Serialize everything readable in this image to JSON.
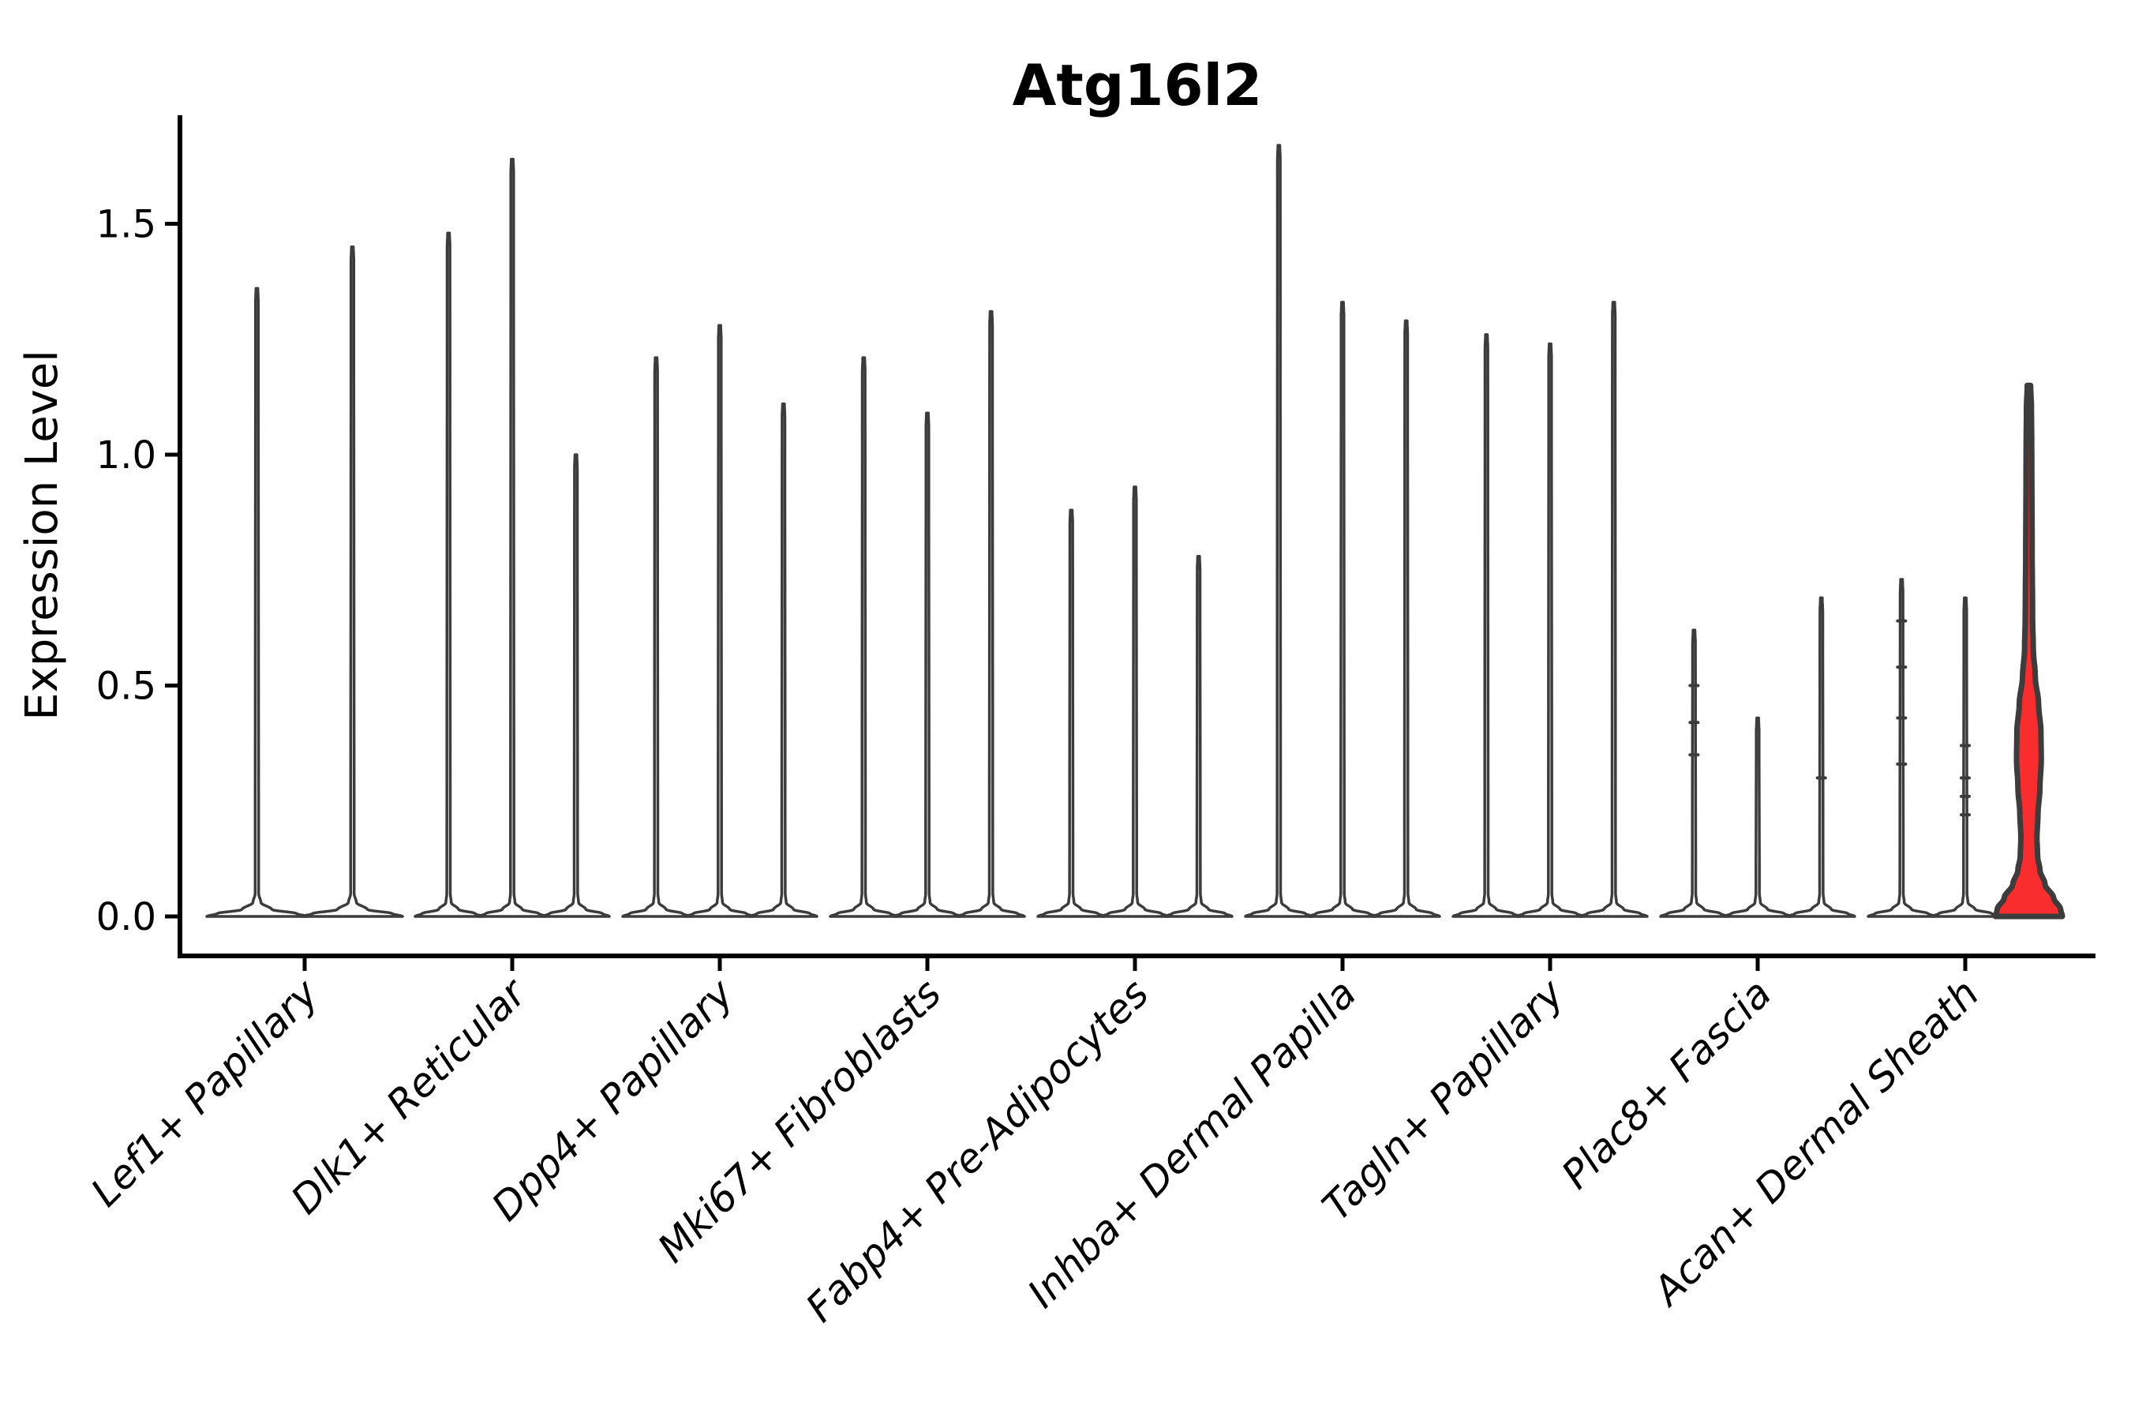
{
  "page": {
    "background": "#ffffff"
  },
  "chart_data": {
    "type": "violin",
    "title": "Atg16l2",
    "ylabel": "Expression Level",
    "xlabel": "",
    "grid": false,
    "legend": null,
    "ylim": [
      -0.09,
      1.74
    ],
    "yticks": {
      "labels": [
        "0.0",
        "0.5",
        "1.0",
        "1.5"
      ],
      "values": [
        0,
        0.5,
        1.0,
        1.5
      ]
    },
    "colors": {
      "violin_stroke": "#3c3c3c",
      "axis": "#000000",
      "text": "#000000",
      "highlight_fill": "#F92D2D"
    },
    "categories": [
      "Lef1+ Papillary",
      "Dlk1+ Reticular",
      "Dpp4+ Papillary",
      "Mki67+ Fibroblasts",
      "Fabp4+ Pre-Adipocytes",
      "Inhba+ Dermal Papilla",
      "Tagln+ Papillary",
      "Plac8+ Fascia",
      "Acan+ Dermal Sheath"
    ],
    "groups": [
      {
        "category": "Lef1+ Papillary",
        "violins": [
          {
            "max": 1.36
          },
          {
            "max": 1.45
          }
        ]
      },
      {
        "category": "Dlk1+ Reticular",
        "violins": [
          {
            "max": 1.48
          },
          {
            "max": 1.64
          },
          {
            "max": 1.0
          }
        ]
      },
      {
        "category": "Dpp4+ Papillary",
        "violins": [
          {
            "max": 1.21
          },
          {
            "max": 1.28
          },
          {
            "max": 1.11
          }
        ]
      },
      {
        "category": "Mki67+ Fibroblasts",
        "violins": [
          {
            "max": 1.21
          },
          {
            "max": 1.09
          },
          {
            "max": 1.31
          }
        ]
      },
      {
        "category": "Fabp4+ Pre-Adipocytes",
        "violins": [
          {
            "max": 0.88
          },
          {
            "max": 0.93
          },
          {
            "max": 0.78
          }
        ]
      },
      {
        "category": "Inhba+ Dermal Papilla",
        "violins": [
          {
            "max": 1.67
          },
          {
            "max": 1.33
          },
          {
            "max": 1.29
          }
        ]
      },
      {
        "category": "Tagln+ Papillary",
        "violins": [
          {
            "max": 1.26
          },
          {
            "max": 1.24
          },
          {
            "max": 1.33
          }
        ]
      },
      {
        "category": "Plac8+ Fascia",
        "violins": [
          {
            "max": 0.62,
            "dots": [
              0.5,
              0.42,
              0.35
            ]
          },
          {
            "max": 0.43
          },
          {
            "max": 0.69,
            "dots": [
              0.3
            ]
          }
        ]
      },
      {
        "category": "Acan+ Dermal Sheath",
        "violins": [
          {
            "max": 0.73,
            "dots": [
              0.64,
              0.54,
              0.43,
              0.33
            ]
          },
          {
            "max": 0.69,
            "dots": [
              0.37,
              0.3,
              0.26,
              0.22
            ]
          },
          {
            "max": 1.15,
            "fill": "#F92D2D",
            "profile": [
              [
                0.0,
                1.0
              ],
              [
                0.015,
                0.95
              ],
              [
                0.04,
                0.74
              ],
              [
                0.07,
                0.48
              ],
              [
                0.1,
                0.33
              ],
              [
                0.13,
                0.26
              ],
              [
                0.17,
                0.24
              ],
              [
                0.22,
                0.27
              ],
              [
                0.28,
                0.33
              ],
              [
                0.34,
                0.37
              ],
              [
                0.4,
                0.36
              ],
              [
                0.46,
                0.29
              ],
              [
                0.52,
                0.19
              ],
              [
                0.58,
                0.13
              ],
              [
                0.65,
                0.11
              ],
              [
                0.8,
                0.095
              ],
              [
                1.0,
                0.085
              ],
              [
                1.1,
                0.075
              ],
              [
                1.15,
                0.05
              ]
            ]
          }
        ]
      }
    ]
  }
}
